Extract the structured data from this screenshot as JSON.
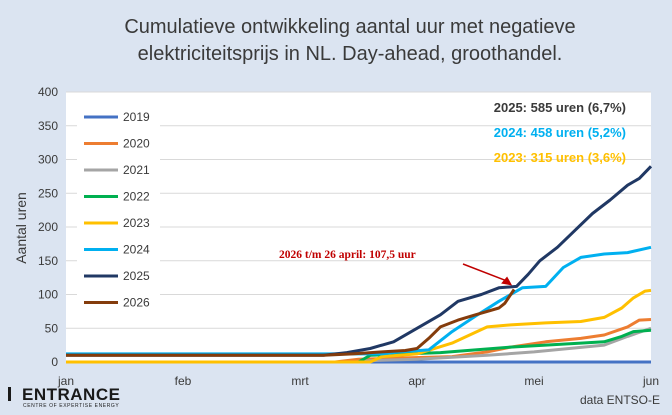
{
  "title_line1": "Cumulatieve ontwikkeling aantal uur met negatieve",
  "title_line2": "elektriciteitsprijs in NL. Day-ahead, groothandel.",
  "source": "data ENTSO-E",
  "logo": {
    "name": "ENTRANCE",
    "subtitle": "CENTRE OF EXPERTISE ENERGY"
  },
  "chart_data": {
    "type": "line",
    "ylabel": "Aantal uren",
    "ylim": [
      0,
      400
    ],
    "yticks": [
      0,
      50,
      100,
      150,
      200,
      250,
      300,
      350,
      400
    ],
    "xlim": [
      0,
      5
    ],
    "xticks": [
      {
        "label": "jan",
        "value": 0
      },
      {
        "label": "feb",
        "value": 1
      },
      {
        "label": "mrt",
        "value": 2
      },
      {
        "label": "apr",
        "value": 3
      },
      {
        "label": "mei",
        "value": 4
      },
      {
        "label": "jun",
        "value": 5
      }
    ],
    "legend_position": "left",
    "series": [
      {
        "name": "2019",
        "color": "#4472c4",
        "points": [
          [
            0,
            0
          ],
          [
            5,
            0
          ]
        ]
      },
      {
        "name": "2020",
        "color": "#ed7d31",
        "points": [
          [
            0,
            0
          ],
          [
            2.3,
            0
          ],
          [
            2.5,
            4
          ],
          [
            2.9,
            6
          ],
          [
            3.3,
            8
          ],
          [
            3.6,
            15
          ],
          [
            3.8,
            22
          ],
          [
            4.1,
            30
          ],
          [
            4.4,
            35
          ],
          [
            4.6,
            40
          ],
          [
            4.8,
            52
          ],
          [
            4.9,
            62
          ],
          [
            5,
            63
          ]
        ]
      },
      {
        "name": "2021",
        "color": "#a5a5a5",
        "points": [
          [
            0,
            0
          ],
          [
            2.5,
            0
          ],
          [
            2.6,
            2
          ],
          [
            3.0,
            4
          ],
          [
            3.6,
            10
          ],
          [
            4.0,
            15
          ],
          [
            4.3,
            20
          ],
          [
            4.6,
            25
          ],
          [
            4.8,
            38
          ],
          [
            5,
            50
          ]
        ]
      },
      {
        "name": "2022",
        "color": "#00b050",
        "points": [
          [
            0,
            0
          ],
          [
            2.5,
            0
          ],
          [
            2.6,
            10
          ],
          [
            2.9,
            12
          ],
          [
            3.2,
            14
          ],
          [
            3.5,
            18
          ],
          [
            3.8,
            22
          ],
          [
            4.1,
            25
          ],
          [
            4.4,
            28
          ],
          [
            4.6,
            30
          ],
          [
            4.75,
            38
          ],
          [
            4.85,
            45
          ],
          [
            5,
            47
          ]
        ]
      },
      {
        "name": "2023",
        "color": "#ffc000",
        "points": [
          [
            0,
            0
          ],
          [
            2.6,
            0
          ],
          [
            2.7,
            8
          ],
          [
            3.0,
            12
          ],
          [
            3.3,
            28
          ],
          [
            3.6,
            52
          ],
          [
            3.8,
            55
          ],
          [
            4.1,
            58
          ],
          [
            4.4,
            60
          ],
          [
            4.6,
            66
          ],
          [
            4.75,
            80
          ],
          [
            4.85,
            95
          ],
          [
            4.95,
            105
          ],
          [
            5,
            106
          ]
        ]
      },
      {
        "name": "2024",
        "color": "#00b0f0",
        "points": [
          [
            0,
            12
          ],
          [
            2.7,
            12
          ],
          [
            2.85,
            15
          ],
          [
            3.1,
            18
          ],
          [
            3.3,
            45
          ],
          [
            3.5,
            68
          ],
          [
            3.7,
            90
          ],
          [
            3.9,
            110
          ],
          [
            4.1,
            112
          ],
          [
            4.25,
            140
          ],
          [
            4.4,
            155
          ],
          [
            4.6,
            160
          ],
          [
            4.8,
            162
          ],
          [
            5,
            170
          ]
        ]
      },
      {
        "name": "2025",
        "color": "#203864",
        "points": [
          [
            0,
            10
          ],
          [
            2.2,
            10
          ],
          [
            2.4,
            14
          ],
          [
            2.6,
            20
          ],
          [
            2.8,
            30
          ],
          [
            3.0,
            50
          ],
          [
            3.2,
            70
          ],
          [
            3.35,
            90
          ],
          [
            3.55,
            100
          ],
          [
            3.7,
            110
          ],
          [
            3.85,
            112
          ],
          [
            3.95,
            130
          ],
          [
            4.05,
            150
          ],
          [
            4.2,
            170
          ],
          [
            4.35,
            195
          ],
          [
            4.5,
            220
          ],
          [
            4.65,
            240
          ],
          [
            4.8,
            262
          ],
          [
            4.9,
            272
          ],
          [
            5,
            290
          ]
        ]
      },
      {
        "name": "2026",
        "color": "#843c0c",
        "points": [
          [
            0,
            10
          ],
          [
            2.2,
            10
          ],
          [
            2.45,
            12
          ],
          [
            2.7,
            15
          ],
          [
            2.9,
            17
          ],
          [
            3.0,
            20
          ],
          [
            3.1,
            35
          ],
          [
            3.2,
            52
          ],
          [
            3.35,
            62
          ],
          [
            3.5,
            70
          ],
          [
            3.6,
            75
          ],
          [
            3.7,
            80
          ],
          [
            3.75,
            87
          ],
          [
            3.83,
            107.5
          ]
        ]
      }
    ],
    "summaries": [
      {
        "text": "2025: 585 uren (6,7%)",
        "color": "#3a3a3a"
      },
      {
        "text": "2024: 458 uren (5,2%)",
        "color": "#00b0f0"
      },
      {
        "text": "2023: 315 uren (3,6%)",
        "color": "#ffc000"
      }
    ],
    "annotation": {
      "text": "2026 t/m 26 april: 107,5 uur",
      "color": "#c00000"
    }
  }
}
